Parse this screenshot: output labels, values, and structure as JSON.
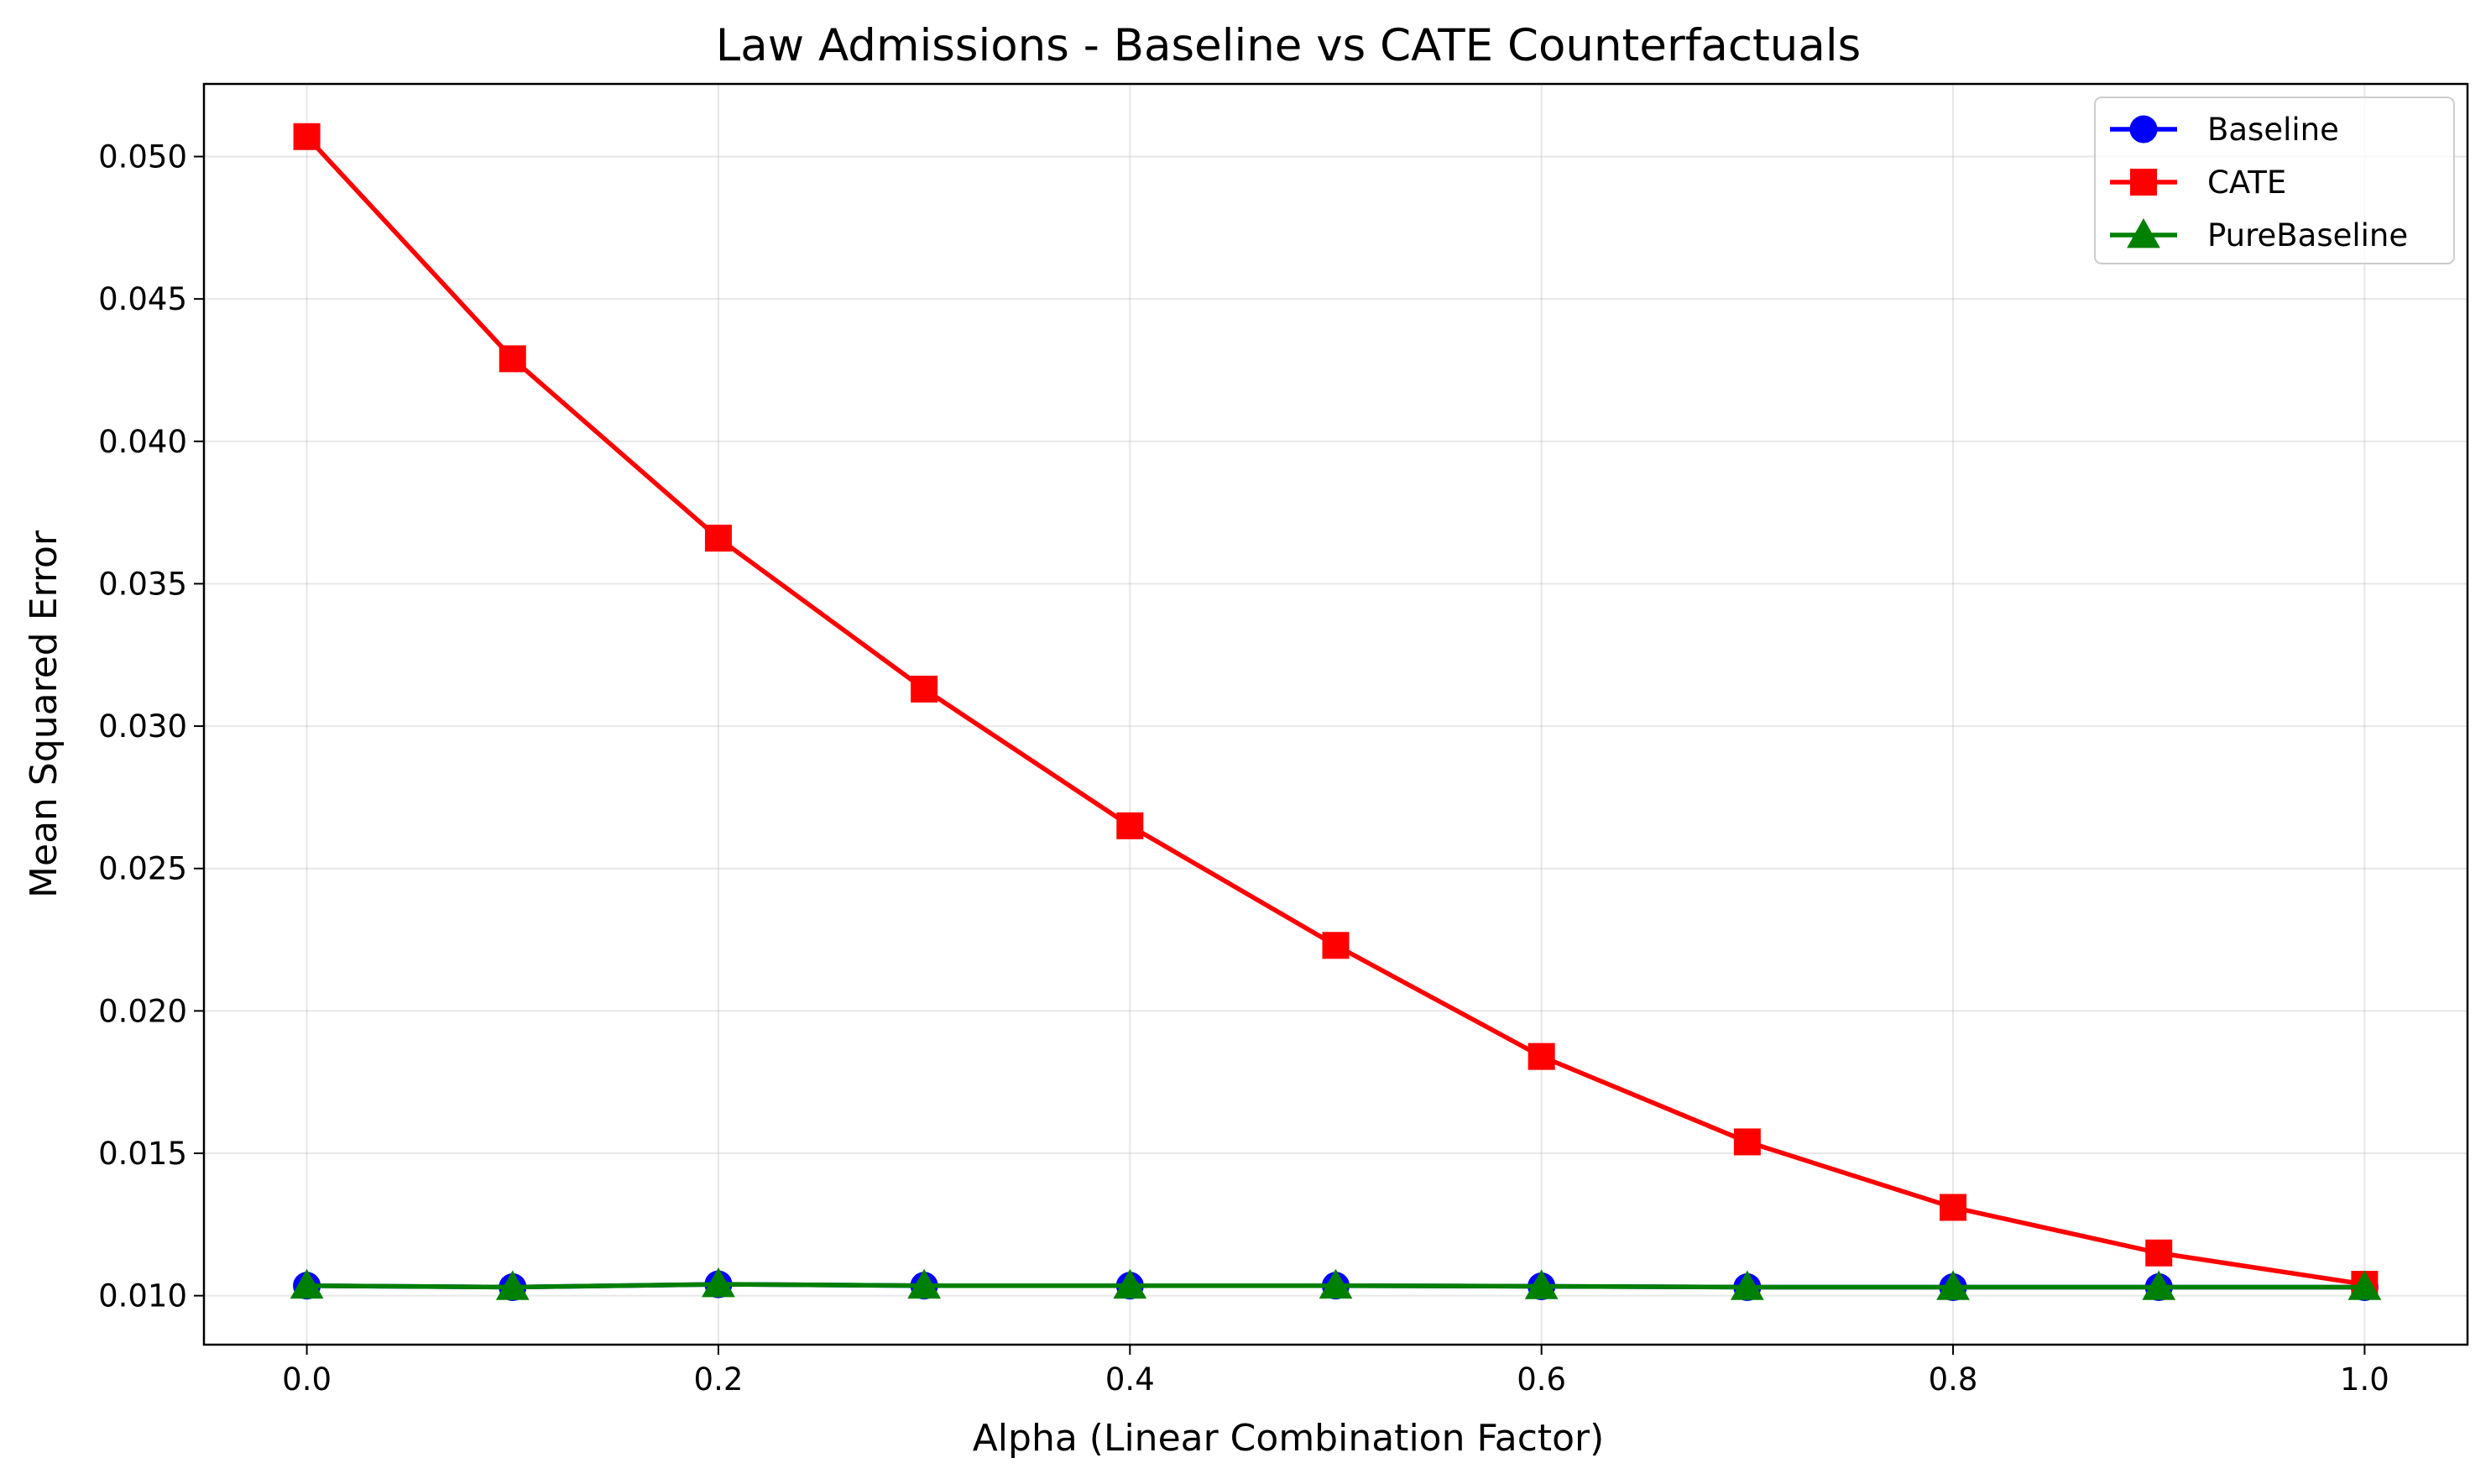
{
  "chart_data": {
    "type": "line",
    "title": "Law Admissions - Baseline vs CATE Counterfactuals",
    "xlabel": "Alpha (Linear Combination Factor)",
    "ylabel": "Mean Squared Error",
    "xlim": [
      -0.05,
      1.05
    ],
    "ylim": [
      0.00828,
      0.05255
    ],
    "xticks": [
      0.0,
      0.2,
      0.4,
      0.6,
      0.8,
      1.0
    ],
    "xtick_labels": [
      "0.0",
      "0.2",
      "0.4",
      "0.6",
      "0.8",
      "1.0"
    ],
    "yticks": [
      0.01,
      0.015,
      0.02,
      0.025,
      0.03,
      0.035,
      0.04,
      0.045,
      0.05
    ],
    "ytick_labels": [
      "0.010",
      "0.015",
      "0.020",
      "0.025",
      "0.030",
      "0.035",
      "0.040",
      "0.045",
      "0.050"
    ],
    "grid": true,
    "legend_position": "top-right",
    "x": [
      0.0,
      0.1,
      0.2,
      0.3,
      0.4,
      0.5,
      0.6,
      0.7,
      0.8,
      0.9,
      1.0
    ],
    "series": [
      {
        "name": "Baseline",
        "color": "#0000ff",
        "marker": "circle",
        "values": [
          0.01035,
          0.0103,
          0.0104,
          0.01035,
          0.01035,
          0.01035,
          0.01033,
          0.0103,
          0.0103,
          0.0103,
          0.0103
        ]
      },
      {
        "name": "CATE",
        "color": "#ff0000",
        "marker": "square",
        "values": [
          0.0507,
          0.0429,
          0.0366,
          0.0313,
          0.0265,
          0.0223,
          0.0184,
          0.0154,
          0.0131,
          0.0115,
          0.0104
        ]
      },
      {
        "name": "PureBaseline",
        "color": "#008000",
        "marker": "triangle",
        "values": [
          0.01035,
          0.0103,
          0.0104,
          0.01035,
          0.01035,
          0.01035,
          0.01033,
          0.0103,
          0.0103,
          0.0103,
          0.0103
        ]
      }
    ]
  }
}
